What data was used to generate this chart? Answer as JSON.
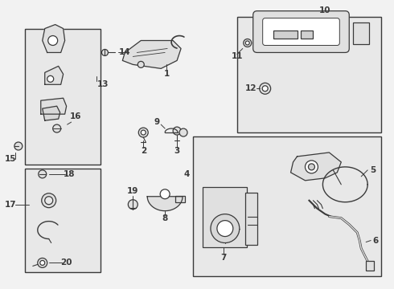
{
  "bg_color": "#f2f2f2",
  "line_color": "#3a3a3a",
  "box_fill": "#e8e8e8",
  "fig_width": 4.9,
  "fig_height": 3.6,
  "dpi": 100
}
